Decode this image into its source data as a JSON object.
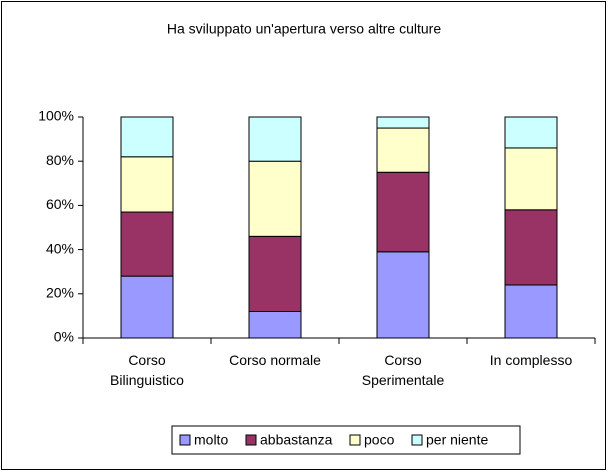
{
  "chart_data": {
    "type": "stacked_bar_100",
    "title": "Ha sviluppato un'apertura verso altre culture",
    "categories": [
      "Corso Bilinguistico",
      "Corso normale",
      "Corso Sperimentale",
      "In complesso"
    ],
    "series": [
      {
        "name": "molto",
        "color": "#9999ff",
        "values": [
          28,
          12,
          39,
          24
        ]
      },
      {
        "name": "abbastanza",
        "color": "#993366",
        "values": [
          29,
          34,
          36,
          34
        ]
      },
      {
        "name": "poco",
        "color": "#ffffcc",
        "values": [
          25,
          34,
          20,
          28
        ]
      },
      {
        "name": "per niente",
        "color": "#ccffff",
        "values": [
          18,
          20,
          5,
          14
        ]
      }
    ],
    "ylim": [
      0,
      100
    ],
    "yticks": [
      {
        "value": 0,
        "label": "0%"
      },
      {
        "value": 20,
        "label": "20%"
      },
      {
        "value": 40,
        "label": "40%"
      },
      {
        "value": 60,
        "label": "60%"
      },
      {
        "value": 80,
        "label": "80%"
      },
      {
        "value": 100,
        "label": "100%"
      }
    ],
    "grid": false,
    "legend": "bottom"
  }
}
